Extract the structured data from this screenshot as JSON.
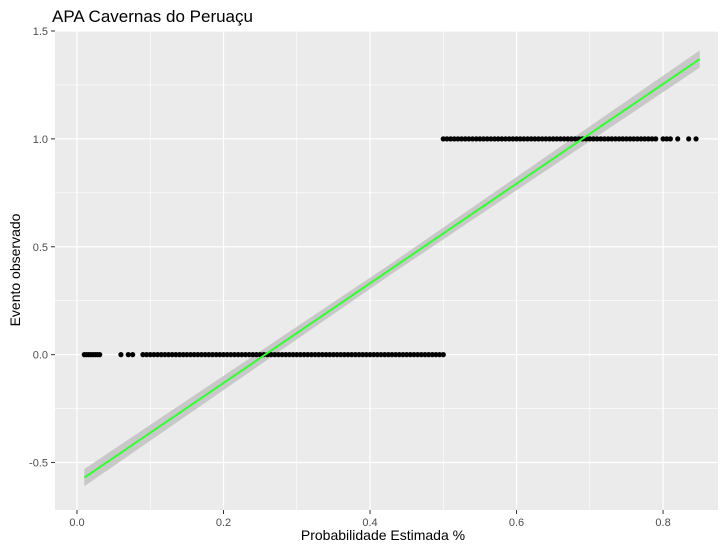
{
  "chart_data": {
    "type": "scatter",
    "title": "APA Cavernas do Peruaçu",
    "xlabel": "Probabilidade Estimada %",
    "ylabel": "Evento observado",
    "xlim": [
      -0.03,
      0.875
    ],
    "ylim": [
      -0.72,
      1.5
    ],
    "x_ticks": [
      0.0,
      0.2,
      0.4,
      0.6,
      0.8
    ],
    "x_tick_labels": [
      "0.0",
      "0.2",
      "0.4",
      "0.6",
      "0.8"
    ],
    "y_ticks": [
      -0.5,
      0.0,
      0.5,
      1.0,
      1.5
    ],
    "y_tick_labels": [
      "-0.5",
      "0.0",
      "0.5",
      "1.0",
      "1.5"
    ],
    "grid": true,
    "legend": "none",
    "colors": {
      "panel": "#ebebeb",
      "grid": "#ffffff",
      "points": "#000000",
      "fit_line": "#33ff33",
      "confidence_band": "#c4c4c4"
    },
    "series": [
      {
        "type": "points",
        "y": 0,
        "x": [
          0.01,
          0.013,
          0.016,
          0.019,
          0.022,
          0.025,
          0.028,
          0.031,
          0.06,
          0.07,
          0.076,
          0.09,
          0.095,
          0.1,
          0.105,
          0.11,
          0.115,
          0.12,
          0.125,
          0.13,
          0.135,
          0.14,
          0.145,
          0.15,
          0.155,
          0.16,
          0.165,
          0.17,
          0.175,
          0.18,
          0.185,
          0.19,
          0.195,
          0.2,
          0.205,
          0.21,
          0.215,
          0.22,
          0.225,
          0.23,
          0.235,
          0.24,
          0.245,
          0.25,
          0.255,
          0.26,
          0.265,
          0.27,
          0.275,
          0.28,
          0.285,
          0.29,
          0.295,
          0.3,
          0.305,
          0.31,
          0.315,
          0.32,
          0.325,
          0.33,
          0.335,
          0.34,
          0.345,
          0.35,
          0.355,
          0.36,
          0.365,
          0.37,
          0.375,
          0.38,
          0.385,
          0.39,
          0.395,
          0.4,
          0.405,
          0.41,
          0.415,
          0.42,
          0.425,
          0.43,
          0.435,
          0.44,
          0.445,
          0.45,
          0.455,
          0.46,
          0.465,
          0.47,
          0.475,
          0.48,
          0.485,
          0.49,
          0.495,
          0.5
        ]
      },
      {
        "type": "points",
        "y": 1,
        "x": [
          0.5,
          0.505,
          0.51,
          0.515,
          0.52,
          0.525,
          0.53,
          0.535,
          0.54,
          0.545,
          0.55,
          0.555,
          0.56,
          0.565,
          0.57,
          0.575,
          0.58,
          0.585,
          0.59,
          0.595,
          0.6,
          0.605,
          0.61,
          0.615,
          0.62,
          0.625,
          0.63,
          0.635,
          0.64,
          0.645,
          0.65,
          0.655,
          0.66,
          0.665,
          0.67,
          0.675,
          0.68,
          0.685,
          0.69,
          0.695,
          0.7,
          0.705,
          0.71,
          0.715,
          0.72,
          0.725,
          0.73,
          0.735,
          0.74,
          0.745,
          0.75,
          0.755,
          0.76,
          0.765,
          0.77,
          0.775,
          0.78,
          0.785,
          0.79,
          0.8,
          0.805,
          0.81,
          0.82,
          0.835,
          0.845
        ]
      }
    ],
    "fit": {
      "type": "linear",
      "x": [
        0.01,
        0.85
      ],
      "y": [
        -0.57,
        1.37
      ],
      "band_halfwidth": [
        0.04,
        0.025,
        0.04
      ]
    }
  }
}
